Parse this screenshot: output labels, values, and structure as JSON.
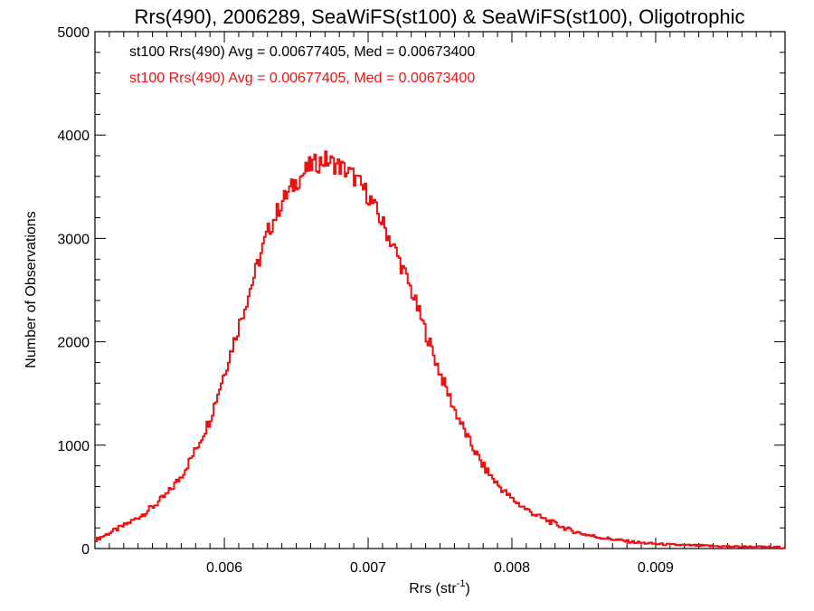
{
  "chart_data": {
    "type": "histogram",
    "title": "Rrs(490), 2006289, SeaWiFS(st100) & SeaWiFS(st100), Oligotrophic",
    "xlabel": "Rrs (str",
    "xlabel_sup": "-1",
    "xlabel_close": ")",
    "ylabel": "Number of Observations",
    "xlim": [
      0.0051,
      0.0099
    ],
    "ylim": [
      0,
      5000
    ],
    "x_ticks": [
      0.006,
      0.007,
      0.008,
      0.009
    ],
    "x_tick_labels": [
      "0.006",
      "0.007",
      "0.008",
      "0.009"
    ],
    "y_ticks": [
      0,
      1000,
      2000,
      3000,
      4000,
      5000
    ],
    "y_tick_labels": [
      "0",
      "1000",
      "2000",
      "3000",
      "4000",
      "5000"
    ],
    "grid": false,
    "annotations": [
      {
        "text": "st100 Rrs(490) Avg = 0.00677405, Med = 0.00673400",
        "color": "#000000"
      },
      {
        "text": "st100 Rrs(490) Avg = 0.00677405, Med = 0.00673400",
        "color": "#ee1111"
      }
    ],
    "series": [
      {
        "color": "#ee1111",
        "x": [
          0.0051,
          0.0052,
          0.0053,
          0.0054,
          0.0055,
          0.0056,
          0.0057,
          0.0058,
          0.0059,
          0.006,
          0.0061,
          0.0062,
          0.0063,
          0.0064,
          0.0065,
          0.0066,
          0.0067,
          0.0068,
          0.0069,
          0.007,
          0.0071,
          0.0072,
          0.0073,
          0.0074,
          0.0075,
          0.0076,
          0.0077,
          0.0078,
          0.0079,
          0.008,
          0.0081,
          0.0082,
          0.0083,
          0.0084,
          0.0085,
          0.0086,
          0.0087,
          0.0088,
          0.0089,
          0.009,
          0.0091,
          0.0092,
          0.0093,
          0.0094,
          0.0095,
          0.0096,
          0.0097,
          0.0098,
          0.0099
        ],
        "y": [
          80,
          150,
          220,
          300,
          400,
          520,
          700,
          950,
          1250,
          1700,
          2150,
          2600,
          3050,
          3350,
          3550,
          3700,
          3760,
          3700,
          3600,
          3420,
          3150,
          2850,
          2500,
          2100,
          1700,
          1350,
          1050,
          800,
          620,
          480,
          380,
          300,
          240,
          180,
          140,
          110,
          90,
          70,
          55,
          45,
          38,
          32,
          28,
          24,
          20,
          17,
          15,
          12,
          10
        ]
      }
    ]
  }
}
